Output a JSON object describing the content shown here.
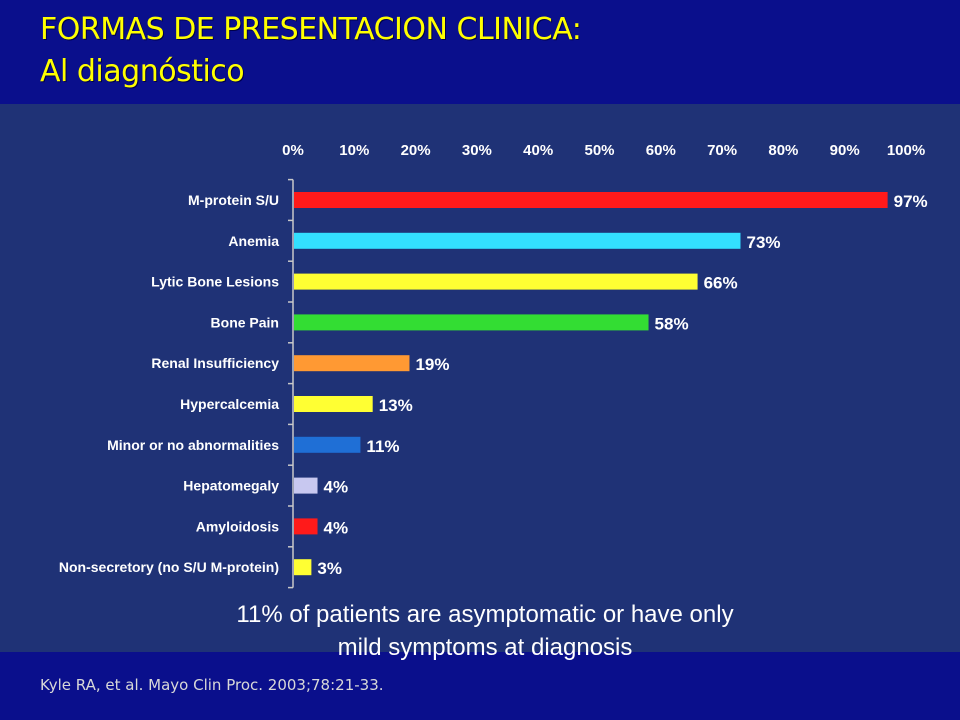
{
  "slide": {
    "title_line1": "FORMAS DE PRESENTACION CLINICA:",
    "title_line2": "Al diagnóstico",
    "caption_line1": "11% of patients are asymptomatic or have only",
    "caption_line2": "mild symptoms at diagnosis",
    "citation": "Kyle RA, et al. Mayo Clin Proc. 2003;78:21-33."
  },
  "chart_data": {
    "type": "bar",
    "orientation": "horizontal",
    "title": "",
    "xlabel": "",
    "ylabel": "",
    "xlim": [
      0,
      100
    ],
    "x_tick_labels": [
      "0%",
      "10%",
      "20%",
      "30%",
      "40%",
      "50%",
      "60%",
      "70%",
      "80%",
      "90%",
      "100%"
    ],
    "x_axis_position": "top",
    "grid": false,
    "categories": [
      "M-protein S/U",
      "Anemia",
      "Lytic Bone Lesions",
      "Bone Pain",
      "Renal Insufficiency",
      "Hypercalcemia",
      "Minor or no abnormalities",
      "Hepatomegaly",
      "Amyloidosis",
      "Non-secretory (no S/U M-protein)"
    ],
    "values": [
      97,
      73,
      66,
      58,
      19,
      13,
      11,
      4,
      4,
      3
    ],
    "value_labels": [
      "97%",
      "73%",
      "66%",
      "58%",
      "19%",
      "13%",
      "11%",
      "4%",
      "4%",
      "3%"
    ],
    "colors": [
      "#ff1a1a",
      "#33e0ff",
      "#ffff33",
      "#33dd33",
      "#ff9933",
      "#ffff33",
      "#1f6fd6",
      "#c8c8f0",
      "#ff1a1a",
      "#ffff33"
    ]
  }
}
